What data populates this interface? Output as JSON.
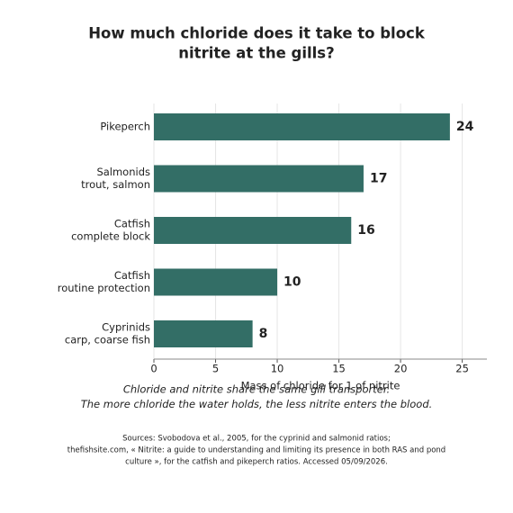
{
  "chart_data": {
    "type": "bar",
    "orientation": "horizontal",
    "title": [
      "How much chloride does it take to block",
      "nitrite at the gills?"
    ],
    "categories": [
      [
        "Pikeperch"
      ],
      [
        "Salmonids",
        "trout, salmon"
      ],
      [
        "Catfish",
        "complete block"
      ],
      [
        "Catfish",
        "routine protection"
      ],
      [
        "Cyprinids",
        "carp, coarse fish"
      ]
    ],
    "values": [
      24,
      17,
      16,
      10,
      8
    ],
    "color": "#336e66",
    "xlabel": "Mass of chloride for 1 of nitrite",
    "xlim": [
      0,
      27
    ],
    "xticks": [
      0,
      5,
      10,
      15,
      20,
      25
    ],
    "grid": true,
    "annotation": [
      "Chloride and nitrite share the same gill transporter.",
      "The more chloride the water holds, the less nitrite enters the blood."
    ],
    "source": [
      "Sources: Svobodova et al., 2005, for the cyprinid and salmonid ratios;",
      "thefishsite.com, « Nitrite: a guide to understanding and limiting its presence in both RAS and pond",
      "culture », for the catfish and pikeperch ratios. Accessed 05/09/2026."
    ]
  }
}
